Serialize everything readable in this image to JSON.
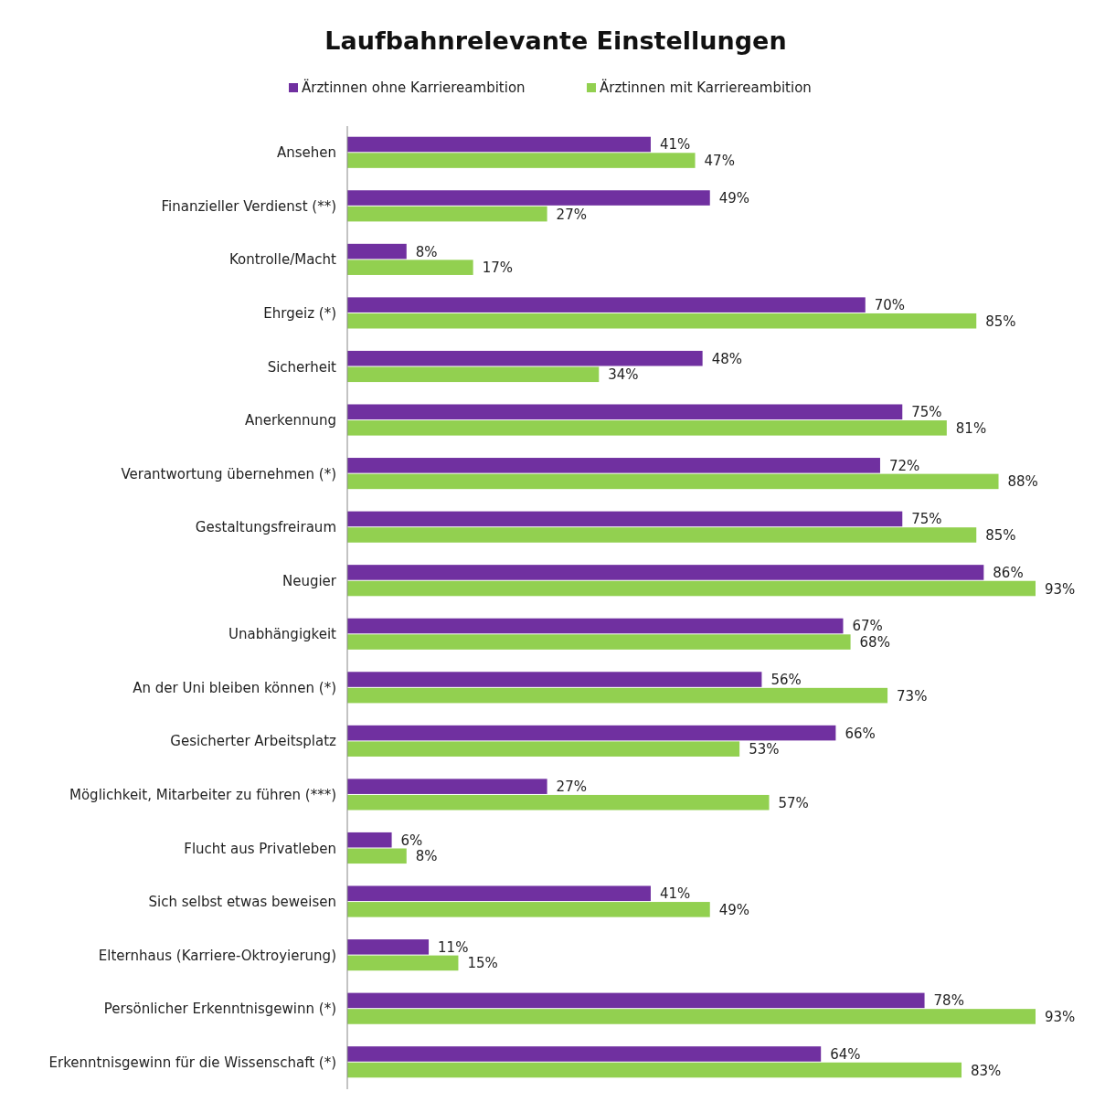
{
  "chart_data": {
    "type": "bar",
    "orientation": "horizontal",
    "title": "Laufbahnrelevante Einstellungen",
    "legend": "top",
    "categories": [
      "Ansehen",
      "Finanzieller Verdienst (**)",
      "Kontrolle/Macht",
      "Ehrgeiz (*)",
      "Sicherheit",
      "Anerkennung",
      "Verantwortung übernehmen (*)",
      "Gestaltungsfreiraum",
      "Neugier",
      "Unabhängigkeit",
      "An der Uni bleiben können (*)",
      "Gesicherter Arbeitsplatz",
      "Möglichkeit, Mitarbeiter zu führen (***)",
      "Flucht aus Privatleben",
      "Sich selbst etwas beweisen",
      "Elternhaus (Karriere-Oktroyierung)",
      "Persönlicher Erkenntnisgewinn (*)",
      "Erkenntnisgewinn für die Wissenschaft (*)"
    ],
    "series": [
      {
        "name": "Ärztinnen ohne Karriereambition",
        "color": "#7030a0",
        "values": [
          41,
          49,
          8,
          70,
          48,
          75,
          72,
          75,
          86,
          67,
          56,
          66,
          27,
          6,
          41,
          11,
          78,
          64
        ],
        "value_labels": [
          "41%",
          "49%",
          "8%",
          "70%",
          "48%",
          "75%",
          "72%",
          "75%",
          "86%",
          "67%",
          "56%",
          "66%",
          "27%",
          "6%",
          "41%",
          "11%",
          "78%",
          "64%"
        ]
      },
      {
        "name": "Ärztinnen mit Karriereambition",
        "color": "#92d050",
        "values": [
          47,
          27,
          17,
          85,
          34,
          81,
          88,
          85,
          93,
          68,
          73,
          53,
          57,
          8,
          49,
          15,
          93,
          83
        ],
        "value_labels": [
          "47%",
          "27%",
          "17%",
          "85%",
          "34%",
          "81%",
          "88%",
          "85%",
          "93%",
          "68%",
          "73%",
          "53%",
          "57%",
          "8%",
          "49%",
          "15%",
          "93%",
          "83%"
        ]
      }
    ]
  }
}
